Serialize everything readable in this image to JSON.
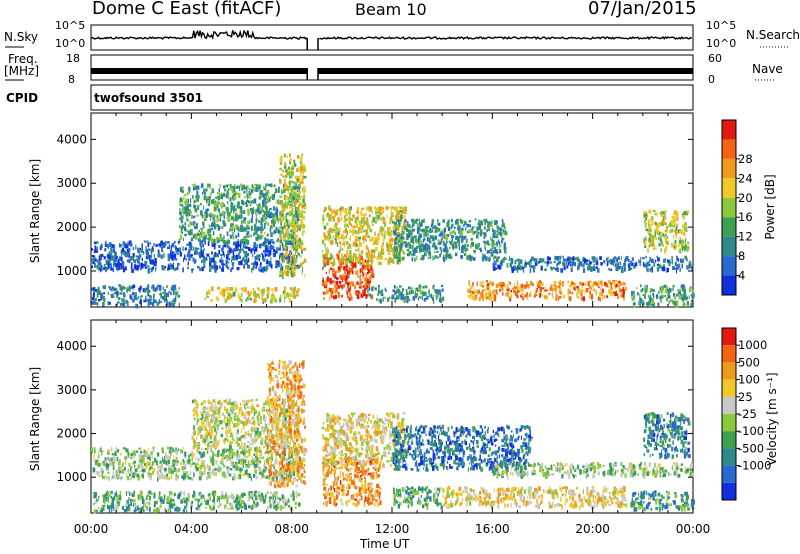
{
  "header": {
    "station": "Dome C East (fitACF)",
    "beam": "Beam 10",
    "date": "07/Jan/2015"
  },
  "strips": {
    "nsky_label": "N.Sky",
    "nsky_ticks": [
      "10^5",
      "10^0"
    ],
    "nsearch_label": "N.Search",
    "nsearch_ticks": [
      "10^5",
      "10^0"
    ],
    "freq_label_1": "Freq.",
    "freq_label_2": "[MHz]",
    "freq_ticks": [
      "18",
      "8"
    ],
    "nave_label": "Nave",
    "nave_ticks": [
      "60",
      "0"
    ],
    "cpid_label": "CPID",
    "cpid_value": "twofsound 3501"
  },
  "colors": {
    "power": [
      "#1030e0",
      "#2a6ad0",
      "#2e8a8a",
      "#3ca050",
      "#8cc83c",
      "#f0c828",
      "#f09a1c",
      "#f06414",
      "#e01a10"
    ],
    "velocity": [
      "#1030e0",
      "#2a6ad0",
      "#2e8a8a",
      "#3ca050",
      "#8cc83c",
      "#c8c8c8",
      "#f0c828",
      "#f09a1c",
      "#f06414",
      "#e01a10"
    ]
  },
  "chart_data": [
    {
      "type": "heatmap",
      "panel": "power",
      "ylabel": "Slant Range [km]",
      "yticks": [
        1000,
        2000,
        3000,
        4000
      ],
      "ylim": [
        180,
        4600
      ],
      "xlim": [
        0,
        24
      ],
      "colorbar_label": "Power [dB]",
      "colorbar_ticks": [
        "4",
        "8",
        "12",
        "16",
        "20",
        "24",
        "28"
      ],
      "regions": [
        {
          "x": [
            0,
            8.3
          ],
          "y": [
            1050,
            1700
          ],
          "level": 0.15
        },
        {
          "x": [
            0,
            3.5
          ],
          "y": [
            250,
            700
          ],
          "level": 0.25
        },
        {
          "x": [
            4.5,
            8.3
          ],
          "y": [
            350,
            650
          ],
          "level": 0.6
        },
        {
          "x": [
            3.5,
            8.3
          ],
          "y": [
            1700,
            3000
          ],
          "level": 0.35
        },
        {
          "x": [
            7.5,
            8.5
          ],
          "y": [
            900,
            3700
          ],
          "level": 0.55
        },
        {
          "x": [
            9.2,
            11.2
          ],
          "y": [
            400,
            1400
          ],
          "level": 0.9
        },
        {
          "x": [
            9.2,
            12.5
          ],
          "y": [
            1200,
            2500
          ],
          "level": 0.6
        },
        {
          "x": [
            11.0,
            14.0
          ],
          "y": [
            350,
            700
          ],
          "level": 0.3
        },
        {
          "x": [
            15.0,
            21.3
          ],
          "y": [
            400,
            800
          ],
          "level": 0.75
        },
        {
          "x": [
            12.0,
            16.5
          ],
          "y": [
            1300,
            2200
          ],
          "level": 0.3
        },
        {
          "x": [
            16.0,
            24.0
          ],
          "y": [
            1050,
            1350
          ],
          "level": 0.2
        },
        {
          "x": [
            21.5,
            24.0
          ],
          "y": [
            250,
            700
          ],
          "level": 0.35
        },
        {
          "x": [
            22.0,
            23.8
          ],
          "y": [
            1500,
            2400
          ],
          "level": 0.55
        }
      ]
    },
    {
      "type": "heatmap",
      "panel": "velocity",
      "ylabel": "Slant Range [km]",
      "yticks": [
        1000,
        2000,
        3000,
        4000
      ],
      "ylim": [
        180,
        4600
      ],
      "xlim": [
        0,
        24
      ],
      "xticks": [
        "00:00",
        "04:00",
        "08:00",
        "12:00",
        "16:00",
        "20:00",
        "00:00"
      ],
      "xlabel": "Time UT",
      "colorbar_label": "Velocity [m s⁻¹]",
      "colorbar_ticks": [
        "1000",
        "500",
        "100",
        "25",
        "-25",
        "-100",
        "-500",
        "-1000"
      ],
      "regions": [
        {
          "x": [
            0,
            8.3
          ],
          "y": [
            1000,
            1700
          ],
          "level": 0.45
        },
        {
          "x": [
            0,
            4.0
          ],
          "y": [
            250,
            700
          ],
          "level": 0.35
        },
        {
          "x": [
            4.0,
            8.3
          ],
          "y": [
            300,
            700
          ],
          "level": 0.4
        },
        {
          "x": [
            4.0,
            8.3
          ],
          "y": [
            1700,
            2800
          ],
          "level": 0.55
        },
        {
          "x": [
            7.0,
            8.5
          ],
          "y": [
            800,
            3700
          ],
          "level": 0.7
        },
        {
          "x": [
            9.2,
            11.5
          ],
          "y": [
            400,
            1500
          ],
          "level": 0.75
        },
        {
          "x": [
            9.2,
            12.5
          ],
          "y": [
            1300,
            2500
          ],
          "level": 0.6
        },
        {
          "x": [
            12.0,
            14.0
          ],
          "y": [
            350,
            800
          ],
          "level": 0.35
        },
        {
          "x": [
            14.0,
            21.3
          ],
          "y": [
            350,
            800
          ],
          "level": 0.62
        },
        {
          "x": [
            12.0,
            17.5
          ],
          "y": [
            1200,
            2200
          ],
          "level": 0.2
        },
        {
          "x": [
            16.0,
            24.0
          ],
          "y": [
            1050,
            1350
          ],
          "level": 0.45
        },
        {
          "x": [
            21.5,
            24.0
          ],
          "y": [
            300,
            700
          ],
          "level": 0.3
        },
        {
          "x": [
            22.0,
            23.8
          ],
          "y": [
            1500,
            2500
          ],
          "level": 0.25
        }
      ]
    }
  ]
}
